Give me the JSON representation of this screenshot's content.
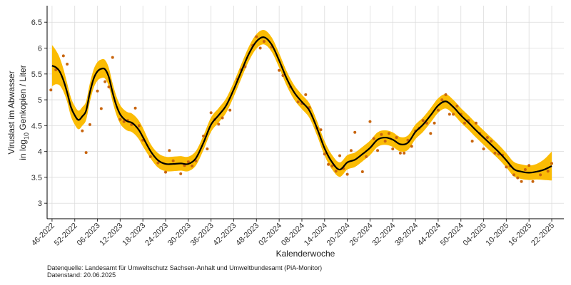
{
  "chart_data": {
    "type": "smooth-scatter",
    "y_label": {
      "line1": "Viruslast im Abwasser",
      "line2_prefix": "in  log",
      "subscript": "10",
      "line2_suffix": " Genkopien / Liter"
    },
    "x_label": "Kalenderwoche",
    "footnotes": [
      "Datenquelle: Landesamt für Umweltschutz Sachsen-Anhalt und Umweltbundesamt (PiA-Monitor)",
      "Datenstand: 20.06.2025"
    ],
    "xlim": [
      -1.3,
      135.2
    ],
    "xticks": [
      {
        "value": 0,
        "label": "46-2022"
      },
      {
        "value": 6,
        "label": "52-2022"
      },
      {
        "value": 12,
        "label": "06-2023"
      },
      {
        "value": 18,
        "label": "12-2023"
      },
      {
        "value": 24,
        "label": "18-2023"
      },
      {
        "value": 30,
        "label": "24-2023"
      },
      {
        "value": 36,
        "label": "30-2023"
      },
      {
        "value": 42,
        "label": "36-2023"
      },
      {
        "value": 48,
        "label": "42-2023"
      },
      {
        "value": 54,
        "label": "48-2023"
      },
      {
        "value": 60,
        "label": "02-2024"
      },
      {
        "value": 66,
        "label": "08-2024"
      },
      {
        "value": 72,
        "label": "14-2024"
      },
      {
        "value": 78,
        "label": "20-2024"
      },
      {
        "value": 84,
        "label": "26-2024"
      },
      {
        "value": 90,
        "label": "32-2024"
      },
      {
        "value": 96,
        "label": "38-2024"
      },
      {
        "value": 102,
        "label": "44-2024"
      },
      {
        "value": 108,
        "label": "50-2024"
      },
      {
        "value": 114,
        "label": "04-2025"
      },
      {
        "value": 120,
        "label": "10-2025"
      },
      {
        "value": 126,
        "label": "16-2025"
      },
      {
        "value": 132,
        "label": "22-2025"
      }
    ],
    "ylim": [
      2.7,
      6.82
    ],
    "yticks": [
      3,
      3.5,
      4,
      4.5,
      5,
      5.5,
      6,
      6.5
    ],
    "grid": true,
    "smooth": {
      "color": "#000000",
      "band_color": "#fbbc04",
      "x": [
        0,
        1,
        2,
        3,
        4,
        5,
        6,
        7,
        8,
        9,
        10,
        11,
        12,
        13,
        14,
        15,
        16,
        17,
        18,
        19,
        20,
        21,
        22,
        23,
        24,
        26,
        28,
        30,
        32,
        34,
        36,
        38,
        40,
        42,
        44,
        46,
        48,
        50,
        52,
        54,
        56,
        58,
        60,
        62,
        64,
        66,
        68,
        70,
        72,
        74,
        76,
        78,
        80,
        82,
        84,
        86,
        88,
        90,
        92,
        94,
        96,
        98,
        100,
        102,
        104,
        106,
        108,
        110,
        112,
        114,
        116,
        118,
        120,
        122,
        124,
        126,
        128,
        130,
        132
      ],
      "values": [
        5.66,
        5.63,
        5.55,
        5.38,
        5.14,
        4.86,
        4.7,
        4.61,
        4.68,
        4.79,
        5.14,
        5.41,
        5.55,
        5.6,
        5.59,
        5.44,
        5.14,
        4.89,
        4.72,
        4.63,
        4.58,
        4.56,
        4.5,
        4.41,
        4.28,
        4.01,
        3.83,
        3.76,
        3.76,
        3.77,
        3.76,
        3.87,
        4.17,
        4.52,
        4.7,
        4.89,
        5.2,
        5.55,
        5.89,
        6.13,
        6.21,
        6.07,
        5.76,
        5.41,
        5.14,
        4.96,
        4.79,
        4.45,
        4.06,
        3.79,
        3.65,
        3.79,
        3.84,
        3.95,
        4.07,
        4.23,
        4.27,
        4.23,
        4.14,
        4.17,
        4.38,
        4.52,
        4.7,
        4.89,
        4.97,
        4.86,
        4.7,
        4.56,
        4.41,
        4.27,
        4.13,
        3.99,
        3.83,
        3.66,
        3.61,
        3.59,
        3.61,
        3.65,
        3.72
      ],
      "lower": [
        5.26,
        5.3,
        5.28,
        5.16,
        4.96,
        4.68,
        4.52,
        4.43,
        4.5,
        4.61,
        4.96,
        5.23,
        5.37,
        5.42,
        5.41,
        5.26,
        4.96,
        4.71,
        4.54,
        4.45,
        4.4,
        4.38,
        4.32,
        4.23,
        4.1,
        3.87,
        3.69,
        3.62,
        3.62,
        3.63,
        3.62,
        3.73,
        4.03,
        4.38,
        4.56,
        4.75,
        5.06,
        5.41,
        5.75,
        5.99,
        6.07,
        5.93,
        5.62,
        5.27,
        5.0,
        4.82,
        4.65,
        4.31,
        3.92,
        3.65,
        3.51,
        3.65,
        3.7,
        3.81,
        3.93,
        4.09,
        4.13,
        4.09,
        4.0,
        4.03,
        4.24,
        4.38,
        4.56,
        4.75,
        4.83,
        4.72,
        4.56,
        4.42,
        4.27,
        4.13,
        3.99,
        3.85,
        3.69,
        3.52,
        3.47,
        3.45,
        3.46,
        3.45,
        3.44
      ],
      "upper": [
        6.06,
        5.96,
        5.82,
        5.6,
        5.32,
        5.04,
        4.88,
        4.79,
        4.86,
        4.97,
        5.32,
        5.59,
        5.73,
        5.78,
        5.77,
        5.62,
        5.32,
        5.07,
        4.9,
        4.81,
        4.76,
        4.74,
        4.68,
        4.59,
        4.46,
        4.15,
        3.97,
        3.9,
        3.9,
        3.91,
        3.9,
        4.01,
        4.31,
        4.66,
        4.84,
        5.03,
        5.34,
        5.69,
        6.03,
        6.27,
        6.35,
        6.21,
        5.9,
        5.55,
        5.28,
        5.1,
        4.93,
        4.59,
        4.2,
        3.93,
        3.79,
        3.93,
        3.98,
        4.09,
        4.21,
        4.37,
        4.41,
        4.37,
        4.28,
        4.31,
        4.52,
        4.66,
        4.84,
        5.03,
        5.11,
        5.0,
        4.84,
        4.7,
        4.55,
        4.41,
        4.27,
        4.13,
        3.97,
        3.8,
        3.75,
        3.73,
        3.76,
        3.85,
        4.0
      ]
    },
    "points": {
      "color": "#c8650e",
      "x": [
        -0.3,
        1,
        3,
        4,
        8,
        9,
        10,
        12,
        13,
        14,
        15,
        16,
        18,
        19,
        20,
        21,
        22,
        23,
        24,
        26,
        28,
        30,
        31,
        32,
        34,
        35,
        36,
        37,
        38,
        40,
        41,
        42,
        43,
        44,
        45,
        47,
        49,
        50,
        51,
        53,
        54,
        55,
        56,
        58,
        60,
        61,
        63,
        65,
        66,
        67,
        68,
        70,
        71,
        72,
        73,
        74,
        75,
        76,
        77,
        78,
        79,
        80,
        82,
        83,
        84,
        85,
        86,
        87,
        88,
        89,
        90,
        91,
        92,
        93,
        94,
        95,
        96,
        97,
        98,
        99,
        100,
        101,
        102,
        103,
        104,
        105,
        106,
        107,
        108,
        109,
        110,
        111,
        112,
        113,
        114,
        115,
        116,
        117,
        118,
        119,
        120,
        121,
        122,
        123,
        124,
        125,
        126,
        127,
        129,
        131,
        132
      ],
      "values": [
        5.19,
        5.58,
        5.85,
        5.69,
        4.4,
        3.98,
        4.52,
        5.17,
        4.83,
        5.35,
        5.25,
        5.82,
        4.62,
        4.58,
        4.6,
        4.52,
        4.84,
        4.5,
        4.22,
        3.9,
        3.78,
        3.6,
        4.02,
        3.82,
        3.57,
        3.73,
        3.8,
        3.72,
        3.82,
        4.3,
        4.05,
        4.75,
        4.62,
        4.53,
        4.65,
        4.8,
        5.4,
        5.58,
        5.64,
        6.05,
        6.22,
        6.0,
        6.13,
        6.02,
        5.57,
        5.47,
        5.25,
        4.96,
        4.93,
        5.1,
        4.85,
        4.45,
        4.42,
        3.95,
        3.75,
        3.72,
        3.62,
        3.92,
        3.67,
        3.56,
        4.02,
        4.37,
        3.61,
        3.9,
        4.58,
        4.25,
        4.02,
        4.33,
        4.2,
        4.35,
        4.05,
        4.27,
        3.97,
        3.97,
        4.22,
        4.1,
        4.4,
        4.45,
        4.6,
        4.55,
        4.35,
        4.55,
        4.8,
        5.0,
        5.1,
        4.72,
        4.72,
        4.88,
        4.72,
        4.55,
        4.6,
        4.2,
        4.55,
        4.35,
        4.05,
        4.27,
        4.2,
        3.97,
        3.95,
        3.93,
        3.7,
        3.72,
        3.55,
        3.49,
        3.42,
        3.65,
        3.73,
        3.42,
        3.55,
        3.62,
        3.77
      ]
    }
  }
}
